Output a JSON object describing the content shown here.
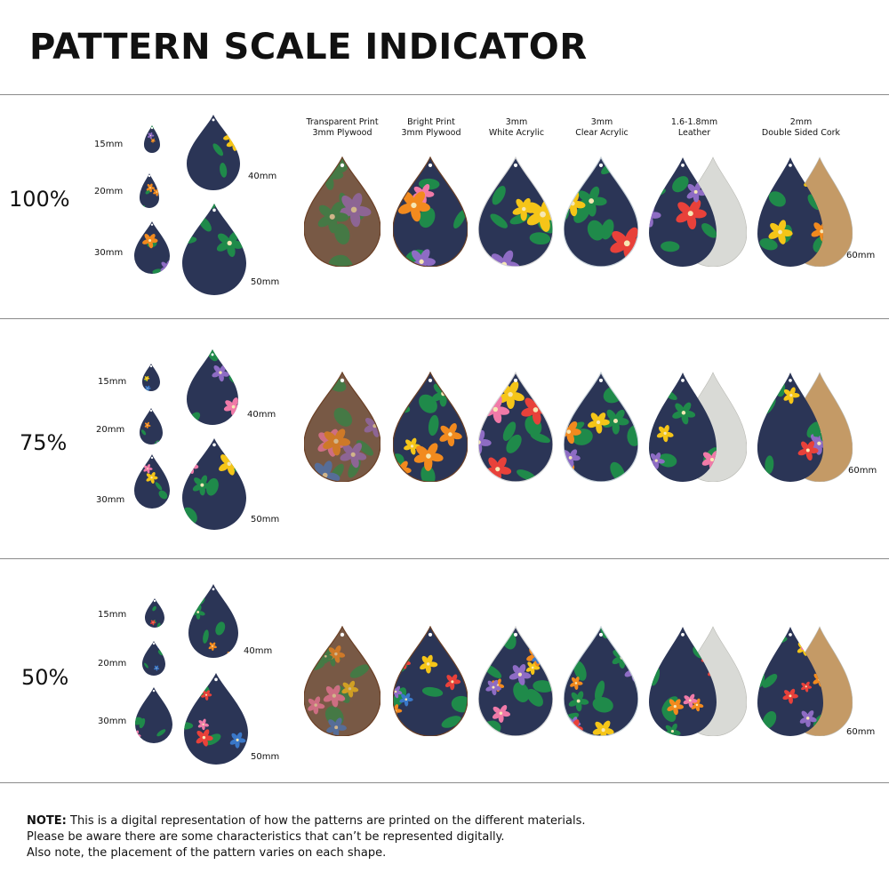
{
  "title": "PATTERN SCALE INDICATOR",
  "materials": [
    {
      "line1": "Transparent Print",
      "line2": "3mm Plywood"
    },
    {
      "line1": "Bright Print",
      "line2": "3mm Plywood"
    },
    {
      "line1": "3mm",
      "line2": "White Acrylic"
    },
    {
      "line1": "3mm",
      "line2": "Clear Acrylic"
    },
    {
      "line1": "1.6-1.8mm",
      "line2": "Leather"
    },
    {
      "line1": "2mm",
      "line2": "Double Sided Cork"
    }
  ],
  "sections": [
    {
      "scale": "100%",
      "sizes": [
        "15mm",
        "20mm",
        "30mm",
        "40mm",
        "50mm"
      ],
      "product_size": "60mm"
    },
    {
      "scale": "75%",
      "sizes": [
        "15mm",
        "20mm",
        "30mm",
        "40mm",
        "50mm"
      ],
      "product_size": "60mm"
    },
    {
      "scale": "50%",
      "sizes": [
        "15mm",
        "20mm",
        "30mm",
        "40mm",
        "50mm"
      ],
      "product_size": "60mm"
    }
  ],
  "note": {
    "lead": "NOTE:",
    "line1": " This is a digital representation of how the patterns are printed on the different materials.",
    "line2": "Please be aware there are some characteristics that can’t be represented digitally.",
    "line3": "Also note, the placement of the pattern varies on each shape."
  },
  "colors": {
    "navy": "#2b3556",
    "yellow": "#f5c518",
    "orange": "#f28a1e",
    "pink": "#f07aa8",
    "red": "#e8413a",
    "blue": "#3a78c9",
    "purple": "#8e6cc4",
    "green": "#1f8a4a",
    "leather": "#d9dad6",
    "cork": "#c49a66",
    "wood": "#8b5a3c"
  }
}
